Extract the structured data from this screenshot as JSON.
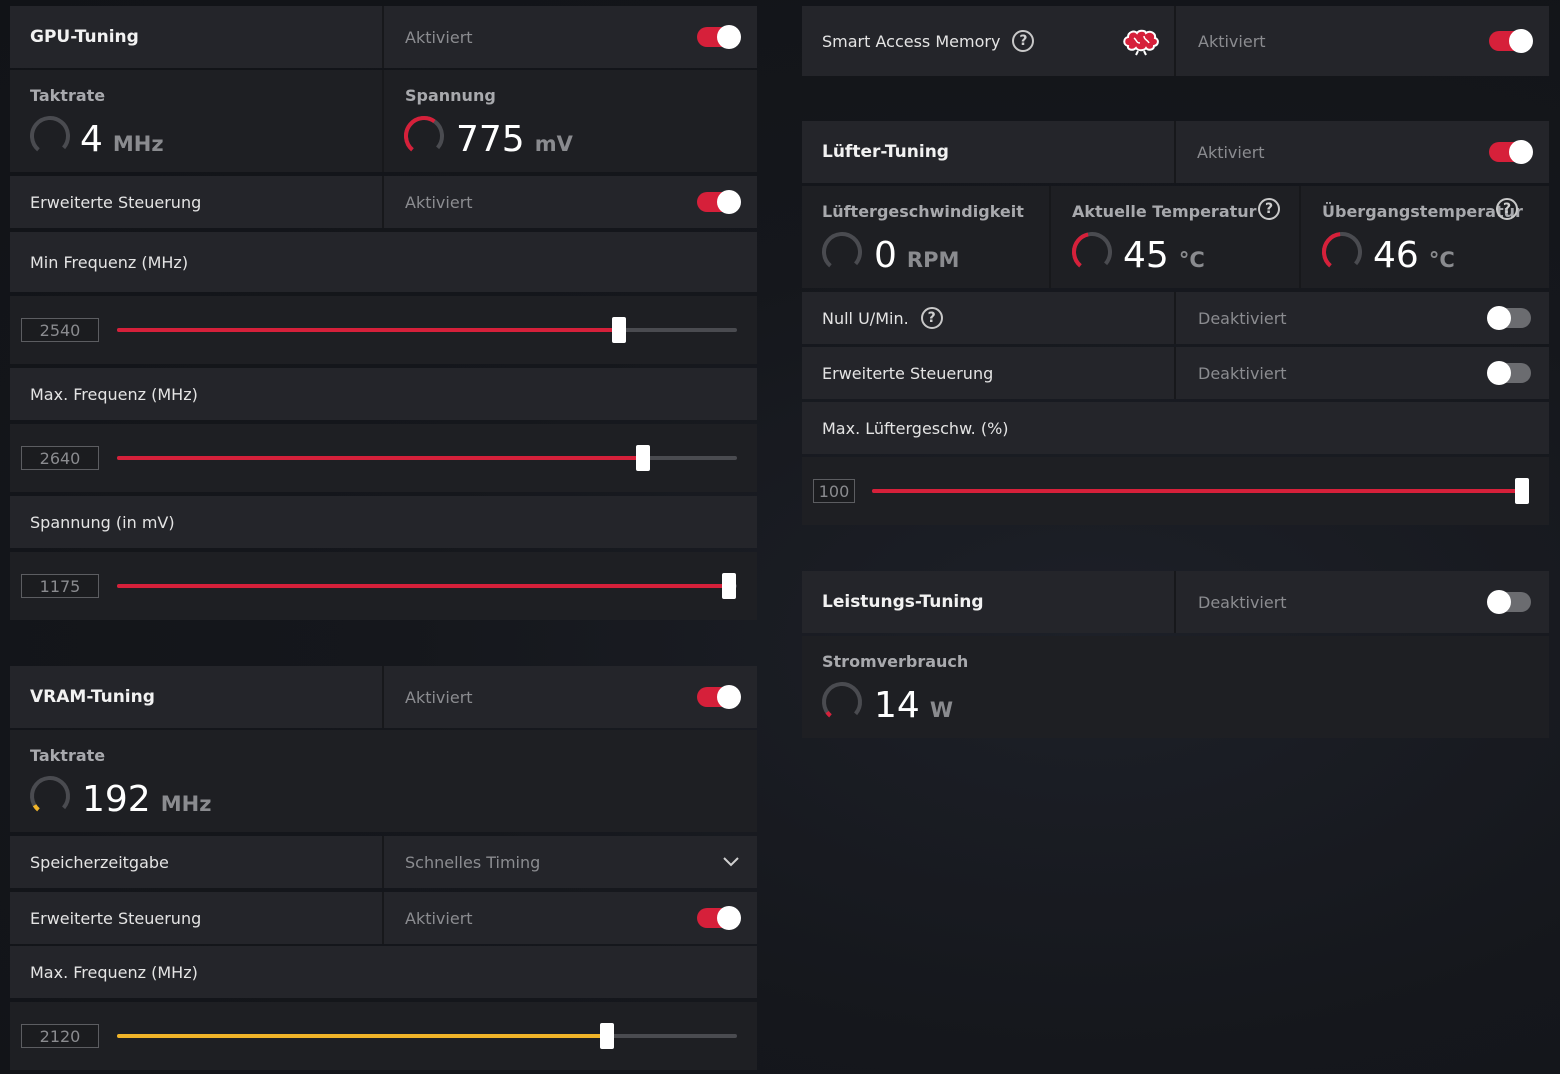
{
  "gpu_tuning": {
    "title": "GPU-Tuning",
    "status": "Aktiviert",
    "clock": {
      "label": "Taktrate",
      "value": "4",
      "unit": "MHz"
    },
    "voltage": {
      "label": "Spannung",
      "value": "775",
      "unit": "mV"
    },
    "advanced": {
      "label": "Erweiterte Steuerung",
      "status": "Aktiviert"
    },
    "min_freq": {
      "label": "Min Frequenz (MHz)",
      "value": "2540",
      "fill_fraction": 0.81
    },
    "max_freq": {
      "label": "Max. Frequenz (MHz)",
      "value": "2640",
      "fill_fraction": 0.848
    },
    "voltage_setting": {
      "label": "Spannung (in mV)",
      "value": "1175",
      "fill_fraction": 0.987
    }
  },
  "vram_tuning": {
    "title": "VRAM-Tuning",
    "status": "Aktiviert",
    "clock": {
      "label": "Taktrate",
      "value": "192",
      "unit": "MHz"
    },
    "memory_timing": {
      "label": "Speicherzeitgabe",
      "value": "Schnelles Timing"
    },
    "advanced": {
      "label": "Erweiterte Steuerung",
      "status": "Aktiviert"
    },
    "max_freq": {
      "label": "Max. Frequenz (MHz)",
      "value": "2120",
      "fill_fraction": 0.79
    }
  },
  "smart_access_memory": {
    "label": "Smart Access Memory",
    "status": "Aktiviert"
  },
  "fan_tuning": {
    "title": "Lüfter-Tuning",
    "status": "Aktiviert",
    "fan_speed": {
      "label": "Lüftergeschwindigkeit",
      "value": "0",
      "unit": "RPM"
    },
    "current_temp": {
      "label": "Aktuelle Temperatur",
      "value": "45",
      "unit": "°C"
    },
    "junction_temp": {
      "label": "Übergangstemperatur",
      "value": "46",
      "unit": "°C"
    },
    "zero_rpm": {
      "label": "Null U/Min.",
      "status": "Deaktiviert"
    },
    "advanced": {
      "label": "Erweiterte Steuerung",
      "status": "Deaktiviert"
    },
    "max_fan_speed": {
      "label": "Max. Lüftergeschw. (%)",
      "value": "100",
      "fill_fraction": 1.0
    }
  },
  "power_tuning": {
    "title": "Leistungs-Tuning",
    "status": "Deaktiviert",
    "power_draw": {
      "label": "Stromverbrauch",
      "value": "14",
      "unit": "W"
    }
  },
  "colors": {
    "accent_red": "#d6203a",
    "accent_yellow": "#f0b429",
    "panel_bg": "#24252a",
    "page_bg": "#15171c"
  },
  "icons": {
    "help": "?",
    "dropdown": "chevron-down-icon",
    "brain": "brain-icon"
  }
}
